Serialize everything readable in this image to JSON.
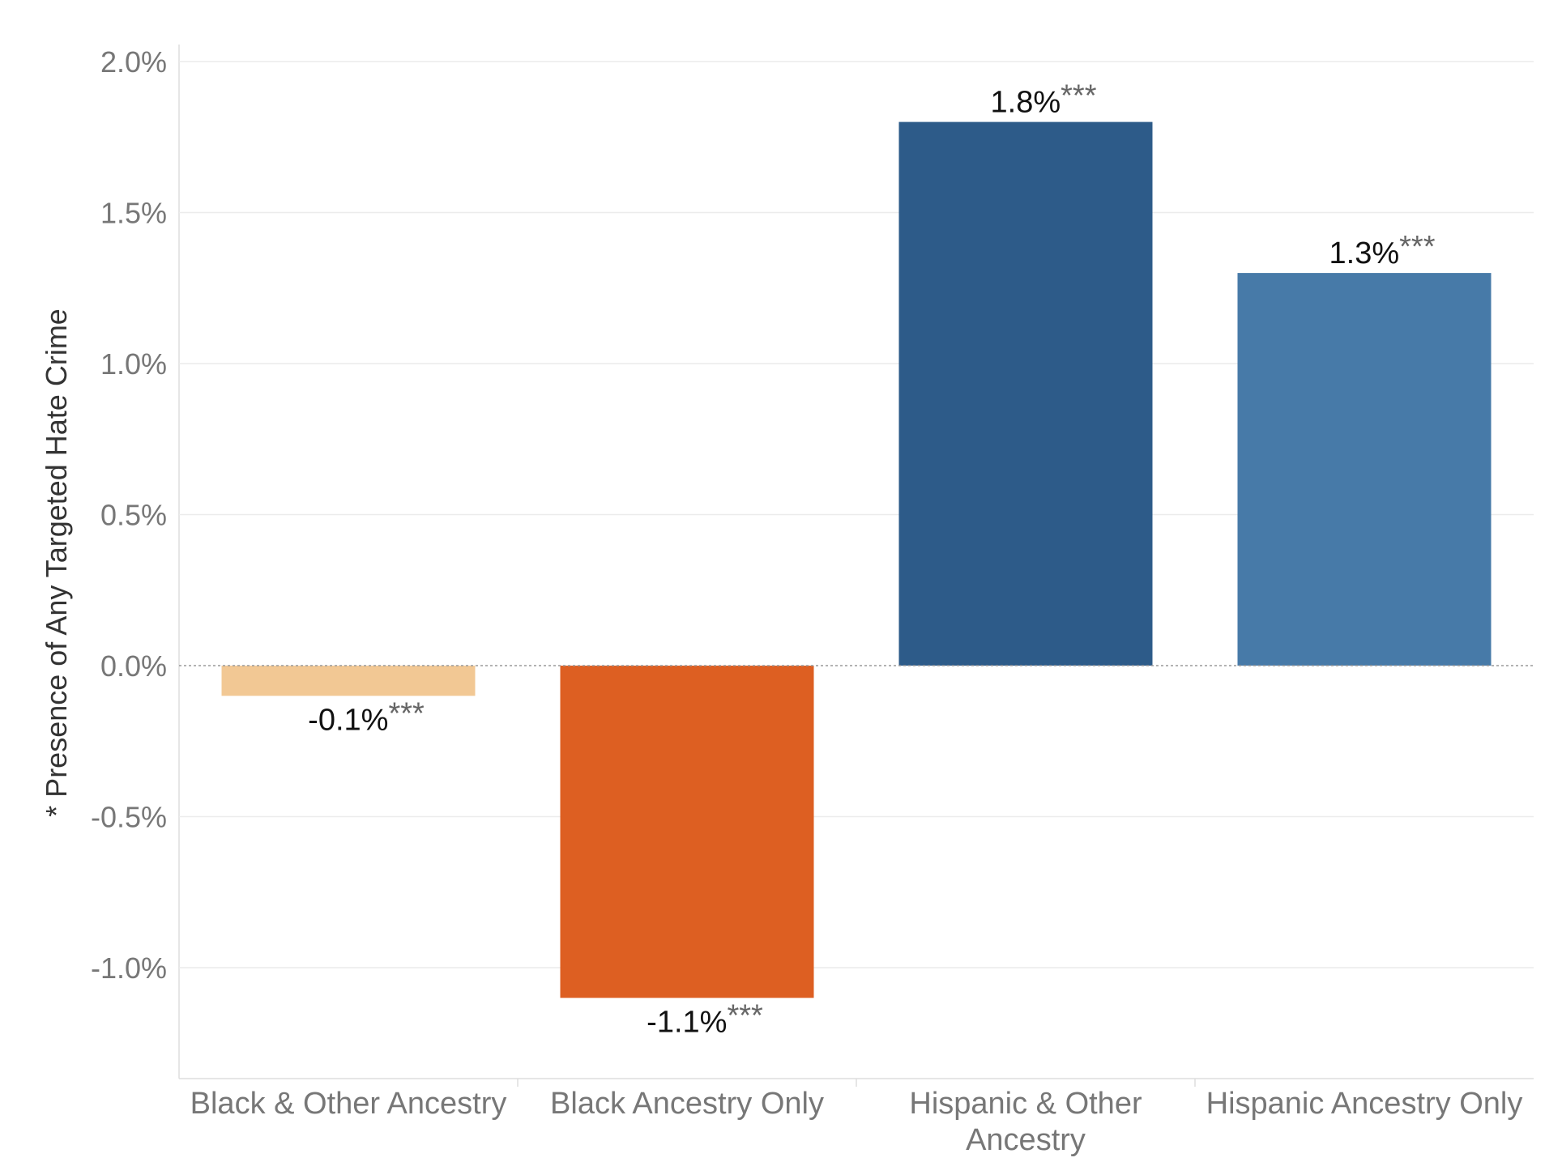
{
  "chart_data": {
    "type": "bar",
    "title": "",
    "xlabel": "",
    "ylabel": "* Presence of Any Targeted Hate Crime",
    "ylim": [
      -1.35,
      2.06
    ],
    "yticks": [
      2.0,
      1.5,
      1.0,
      0.5,
      0.0,
      -0.5,
      -1.0
    ],
    "ytick_labels": [
      "2.0%",
      "1.5%",
      "1.0%",
      "0.5%",
      "0.0%",
      "-0.5%",
      "-1.0%"
    ],
    "categories": [
      [
        "Black & Other Ancestry"
      ],
      [
        "Black Ancestry Only"
      ],
      [
        "Hispanic & Other",
        "Ancestry"
      ],
      [
        "Hispanic Ancestry Only"
      ]
    ],
    "values": [
      -0.1,
      -1.1,
      1.8,
      1.3
    ],
    "value_labels": [
      "-0.1%",
      "-1.1%",
      "1.8%",
      "1.3%"
    ],
    "significance": [
      "***",
      "***",
      "***",
      "***"
    ],
    "colors": [
      "#f2c894",
      "#dd5f22",
      "#2d5b89",
      "#477aa8"
    ],
    "grid": true
  }
}
